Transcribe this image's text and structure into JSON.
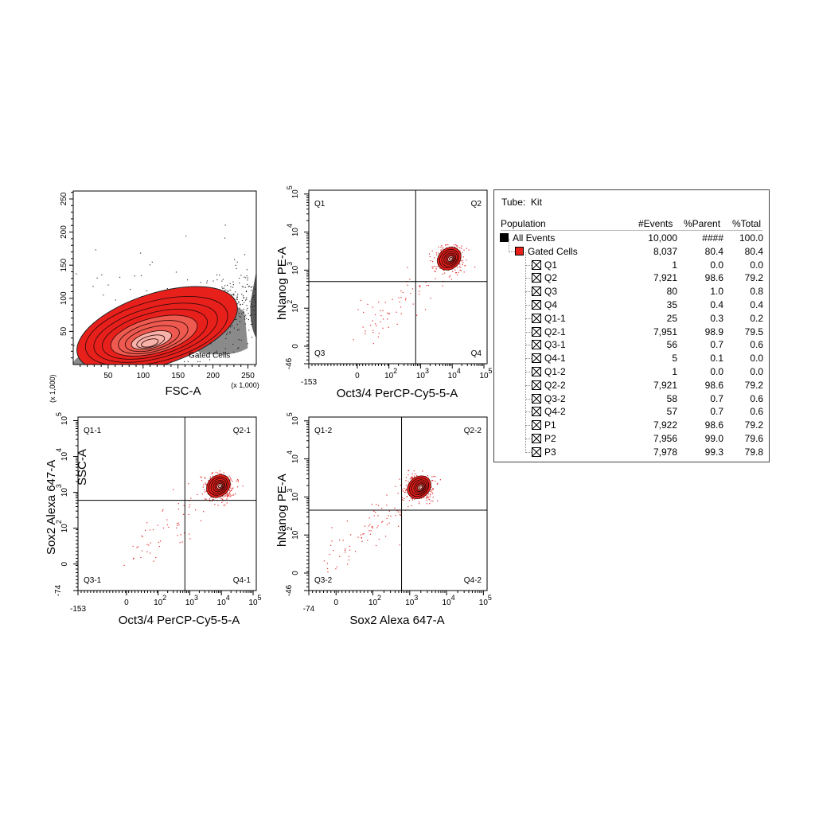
{
  "colors": {
    "gate_red": "#e8201c",
    "dot_red": "#e22a2a",
    "gray": "#8a8a8a",
    "contour": "#3a0a0a"
  },
  "panels": {
    "p1": {
      "ylabel": "SSC-A",
      "xlabel": "FSC-A",
      "yscale_note": "(x 1,000)",
      "xscale_note": "(x 1,000)",
      "yticks": [
        "50",
        "100",
        "150",
        "200",
        "250"
      ],
      "xticks": [
        "50",
        "100",
        "150",
        "200",
        "250"
      ],
      "gate_label": "Gated Cells"
    },
    "p2": {
      "ylabel": "hNanog PE-A",
      "xlabel": "Oct3/4 PerCP-Cy5-5-A",
      "yticks": [
        "-46",
        "0",
        "10",
        "10",
        "10",
        "10"
      ],
      "yexp": [
        "",
        "",
        "2",
        "3",
        "4",
        "5"
      ],
      "xticks": [
        "-153",
        "0",
        "10",
        "10",
        "10",
        "10"
      ],
      "xexp": [
        "",
        "",
        "2",
        "3",
        "4",
        "5"
      ],
      "quadrants": [
        "Q1",
        "Q2",
        "Q3",
        "Q4"
      ]
    },
    "p3": {
      "ylabel": "Sox2 Alexa 647-A",
      "xlabel": "Oct3/4 PerCP-Cy5-5-A",
      "yticks": [
        "-74",
        "0",
        "10",
        "10",
        "10",
        "10"
      ],
      "yexp": [
        "",
        "",
        "2",
        "3",
        "4",
        "5"
      ],
      "xticks": [
        "-153",
        "0",
        "10",
        "10",
        "10",
        "10"
      ],
      "xexp": [
        "",
        "",
        "2",
        "3",
        "4",
        "5"
      ],
      "quadrants": [
        "Q1-1",
        "Q2-1",
        "Q3-1",
        "Q4-1"
      ]
    },
    "p4": {
      "ylabel": "hNanog PE-A",
      "xlabel": "Sox2 Alexa 647-A",
      "yticks": [
        "-46",
        "0",
        "10",
        "10",
        "10",
        "10"
      ],
      "yexp": [
        "",
        "",
        "2",
        "3",
        "4",
        "5"
      ],
      "xticks": [
        "-74",
        "0",
        "10",
        "10",
        "10",
        "10"
      ],
      "xexp": [
        "",
        "",
        "2",
        "3",
        "4",
        "5"
      ],
      "quadrants": [
        "Q1-2",
        "Q2-2",
        "Q3-2",
        "Q4-2"
      ]
    }
  },
  "chart_data": [
    {
      "type": "scatter",
      "xlabel": "FSC-A",
      "ylabel": "SSC-A",
      "xlim": [
        0,
        262
      ],
      "ylim": [
        0,
        262
      ],
      "density_center": {
        "x": 120,
        "y": 38
      },
      "gate": "Gated Cells"
    },
    {
      "type": "scatter",
      "xlabel": "Oct3/4 PerCP-Cy5-5-A",
      "ylabel": "hNanog PE-A",
      "x_scale": "biexponential",
      "y_scale": "biexponential",
      "xlim": [
        -153,
        100000
      ],
      "ylim": [
        -46,
        100000
      ],
      "quadrant_x": 700,
      "quadrant_y": 500,
      "population_center": {
        "x": 8000,
        "y": 2000
      }
    },
    {
      "type": "scatter",
      "xlabel": "Oct3/4 PerCP-Cy5-5-A",
      "ylabel": "Sox2 Alexa 647-A",
      "x_scale": "biexponential",
      "y_scale": "biexponential",
      "xlim": [
        -153,
        100000
      ],
      "ylim": [
        -74,
        100000
      ],
      "quadrant_x": 700,
      "quadrant_y": 600,
      "population_center": {
        "x": 8000,
        "y": 1500
      }
    },
    {
      "type": "scatter",
      "xlabel": "Sox2 Alexa 647-A",
      "ylabel": "hNanog PE-A",
      "x_scale": "biexponential",
      "y_scale": "biexponential",
      "xlim": [
        -74,
        100000
      ],
      "ylim": [
        -46,
        100000
      ],
      "quadrant_x": 600,
      "quadrant_y": 450,
      "population_center": {
        "x": 1800,
        "y": 1800
      }
    }
  ],
  "hierarchy": {
    "tube_label": "Tube:",
    "tube_name": "Kit",
    "headers": {
      "population": "Population",
      "events": "#Events",
      "parent": "%Parent",
      "total": "%Total"
    },
    "rows": [
      {
        "name": "All Events",
        "events": "10,000",
        "parent": "####",
        "total": "100.0",
        "swatch": "#000000",
        "level": 0
      },
      {
        "name": "Gated Cells",
        "events": "8,037",
        "parent": "80.4",
        "total": "80.4",
        "swatch": "#e8201c",
        "level": 1
      },
      {
        "name": "Q1",
        "events": "1",
        "parent": "0.0",
        "total": "0.0",
        "level": 2
      },
      {
        "name": "Q2",
        "events": "7,921",
        "parent": "98.6",
        "total": "79.2",
        "level": 2
      },
      {
        "name": "Q3",
        "events": "80",
        "parent": "1.0",
        "total": "0.8",
        "level": 2
      },
      {
        "name": "Q4",
        "events": "35",
        "parent": "0.4",
        "total": "0.4",
        "level": 2
      },
      {
        "name": "Q1-1",
        "events": "25",
        "parent": "0.3",
        "total": "0.2",
        "level": 2
      },
      {
        "name": "Q2-1",
        "events": "7,951",
        "parent": "98.9",
        "total": "79.5",
        "level": 2
      },
      {
        "name": "Q3-1",
        "events": "56",
        "parent": "0.7",
        "total": "0.6",
        "level": 2
      },
      {
        "name": "Q4-1",
        "events": "5",
        "parent": "0.1",
        "total": "0.0",
        "level": 2
      },
      {
        "name": "Q1-2",
        "events": "1",
        "parent": "0.0",
        "total": "0.0",
        "level": 2
      },
      {
        "name": "Q2-2",
        "events": "7,921",
        "parent": "98.6",
        "total": "79.2",
        "level": 2
      },
      {
        "name": "Q3-2",
        "events": "58",
        "parent": "0.7",
        "total": "0.6",
        "level": 2
      },
      {
        "name": "Q4-2",
        "events": "57",
        "parent": "0.7",
        "total": "0.6",
        "level": 2
      },
      {
        "name": "P1",
        "events": "7,922",
        "parent": "98.6",
        "total": "79.2",
        "level": 2
      },
      {
        "name": "P2",
        "events": "7,956",
        "parent": "99.0",
        "total": "79.6",
        "level": 2
      },
      {
        "name": "P3",
        "events": "7,978",
        "parent": "99.3",
        "total": "79.8",
        "level": 2
      }
    ]
  }
}
